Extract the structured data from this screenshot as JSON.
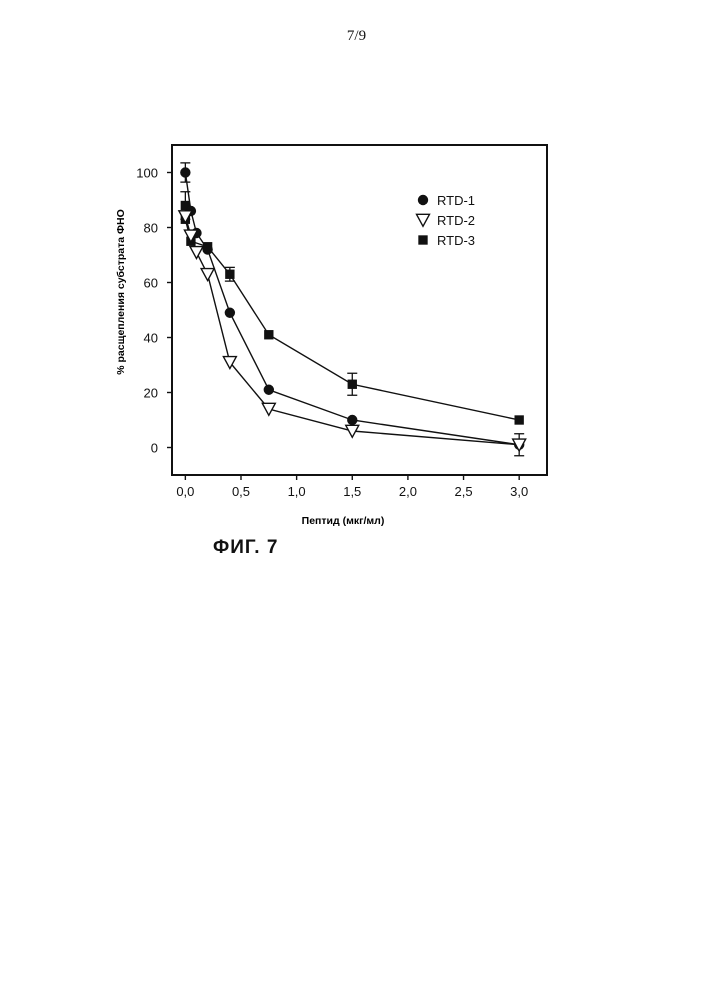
{
  "page": {
    "number": "7/9"
  },
  "figure": {
    "caption": "ФИГ. 7"
  },
  "chart_data": {
    "type": "line",
    "title": "",
    "xlabel": "Пептид (мкг/мл)",
    "ylabel": "% расщепления субстрата ФНО",
    "xlim": [
      -0.12,
      3.25
    ],
    "ylim": [
      -10,
      110
    ],
    "x_ticks": [
      0.0,
      0.5,
      1.0,
      1.5,
      2.0,
      2.5,
      3.0
    ],
    "x_tick_labels": [
      "0,0",
      "0,5",
      "1,0",
      "1,5",
      "2,0",
      "2,5",
      "3,0"
    ],
    "y_ticks": [
      0,
      20,
      40,
      60,
      80,
      100
    ],
    "y_tick_labels": [
      "0",
      "20",
      "40",
      "60",
      "80",
      "100"
    ],
    "grid": false,
    "legend_position": "top-right",
    "series": [
      {
        "name": "RTD-1",
        "marker": "circle",
        "x": [
          0.0,
          0.05,
          0.1,
          0.2,
          0.4,
          0.75,
          1.5,
          3.0
        ],
        "y": [
          100,
          86,
          78,
          72,
          49,
          21,
          10,
          1
        ],
        "err": [
          3.5,
          0,
          0,
          0,
          0,
          0,
          0,
          0
        ]
      },
      {
        "name": "RTD-2",
        "marker": "triangle-down",
        "x": [
          0.0,
          0.05,
          0.1,
          0.2,
          0.4,
          0.75,
          1.5,
          3.0
        ],
        "y": [
          84,
          77,
          71,
          63,
          31,
          14,
          6,
          1
        ],
        "err": [
          0,
          0,
          0,
          0,
          0,
          0,
          0,
          4
        ]
      },
      {
        "name": "RTD-3",
        "marker": "square",
        "x": [
          0.0,
          0.0,
          0.05,
          0.2,
          0.4,
          0.75,
          1.5,
          3.0
        ],
        "y": [
          88,
          83,
          75,
          73,
          63,
          41,
          23,
          10
        ],
        "err": [
          5,
          0,
          0,
          0,
          2.5,
          0,
          4,
          0
        ]
      }
    ]
  }
}
